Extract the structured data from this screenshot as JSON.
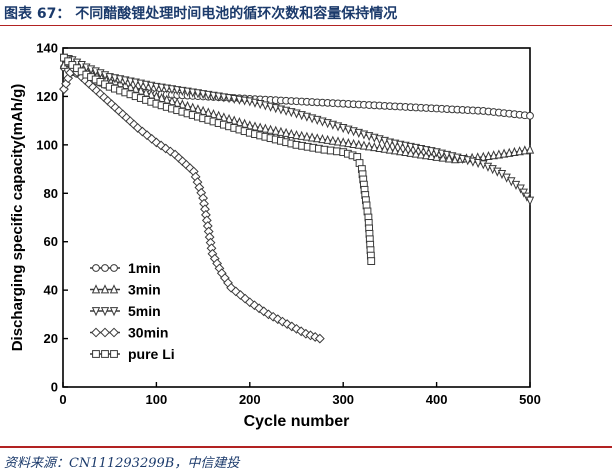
{
  "header": {
    "title": "图表 67：  不同醋酸锂处理时间电池的循环次数和容量保持情况"
  },
  "footer": {
    "source": "资料来源：CN111293299B，中信建投"
  },
  "chart_data": {
    "type": "line",
    "xlabel": "Cycle number",
    "ylabel": "Discharging specific capacity(mAh/g)",
    "xlim": [
      0,
      500
    ],
    "ylim": [
      0,
      140
    ],
    "xticks": [
      0,
      100,
      200,
      300,
      400,
      500
    ],
    "yticks": [
      0,
      20,
      40,
      60,
      80,
      100,
      120,
      140
    ],
    "legend_position": "bottom-left",
    "colors": {
      "series": "#3a3a3a",
      "axis": "#000000"
    },
    "series": [
      {
        "name": "1min",
        "marker": "circle",
        "x": [
          1,
          10,
          25,
          50,
          100,
          150,
          200,
          250,
          300,
          350,
          400,
          450,
          500
        ],
        "y": [
          132,
          130,
          128,
          124,
          121,
          120,
          119,
          118,
          117,
          116,
          115,
          114,
          112
        ]
      },
      {
        "name": "3min",
        "marker": "triangle-up",
        "x": [
          1,
          10,
          25,
          50,
          100,
          150,
          200,
          250,
          300,
          350,
          400,
          420,
          450,
          500
        ],
        "y": [
          133,
          135,
          131,
          127,
          120,
          114,
          108,
          104,
          101,
          98,
          95,
          94,
          95,
          98
        ]
      },
      {
        "name": "5min",
        "marker": "triangle-down",
        "x": [
          1,
          10,
          25,
          50,
          100,
          150,
          200,
          250,
          300,
          350,
          400,
          450,
          470,
          490,
          500
        ],
        "y": [
          136,
          135,
          132,
          128,
          124,
          121,
          118,
          113,
          107,
          101,
          97,
          92,
          88,
          82,
          77
        ]
      },
      {
        "name": "30min",
        "marker": "diamond",
        "x": [
          1,
          10,
          20,
          40,
          60,
          80,
          100,
          120,
          140,
          150,
          160,
          170,
          180,
          200,
          220,
          240,
          260,
          275
        ],
        "y": [
          123,
          132,
          128,
          121,
          114,
          107,
          101,
          96,
          89,
          78,
          55,
          47,
          41,
          35,
          30,
          26,
          22,
          20
        ]
      },
      {
        "name": "pure Li",
        "marker": "square",
        "x": [
          1,
          10,
          25,
          50,
          100,
          150,
          200,
          250,
          280,
          300,
          315,
          320,
          325,
          327,
          330
        ],
        "y": [
          136,
          133,
          129,
          124,
          117,
          111,
          105,
          100,
          98,
          97,
          95,
          90,
          75,
          70,
          52
        ]
      }
    ]
  }
}
